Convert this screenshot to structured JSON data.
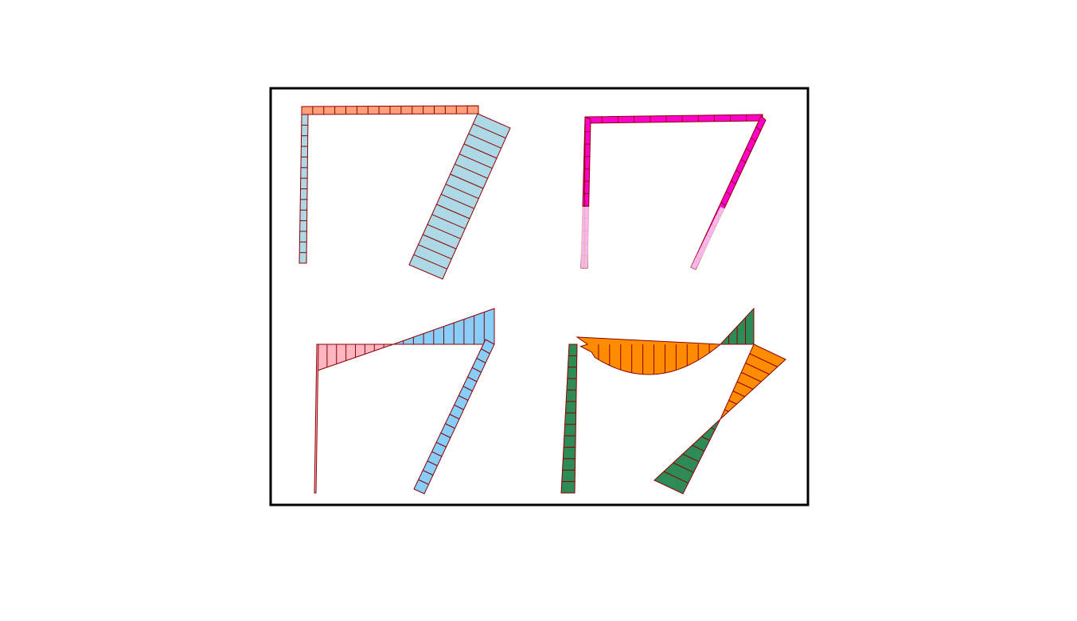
{
  "diagram": {
    "type": "structural-frame-internal-force-diagrams",
    "panels": [
      {
        "id": "top-left",
        "fills": {
          "beam": "#FFA07A",
          "column": "#ADD8E6",
          "inclined": "#ADD8E6"
        },
        "outline": "#8B0000"
      },
      {
        "id": "top-right",
        "fills": {
          "beam": "#FF00CC",
          "column": "#FF00CC",
          "inclined": "#FF00CC"
        },
        "outline": "#8B0000"
      },
      {
        "id": "bottom-left",
        "fills": {
          "negative": "#FFB6C1",
          "positive": "#87CEFA"
        },
        "outline": "#8B0000"
      },
      {
        "id": "bottom-right",
        "fills": {
          "positive": "#FF8C00",
          "negative": "#2E8B57"
        },
        "outline": "#8B0000"
      }
    ],
    "frame_border_color": "#000000"
  }
}
